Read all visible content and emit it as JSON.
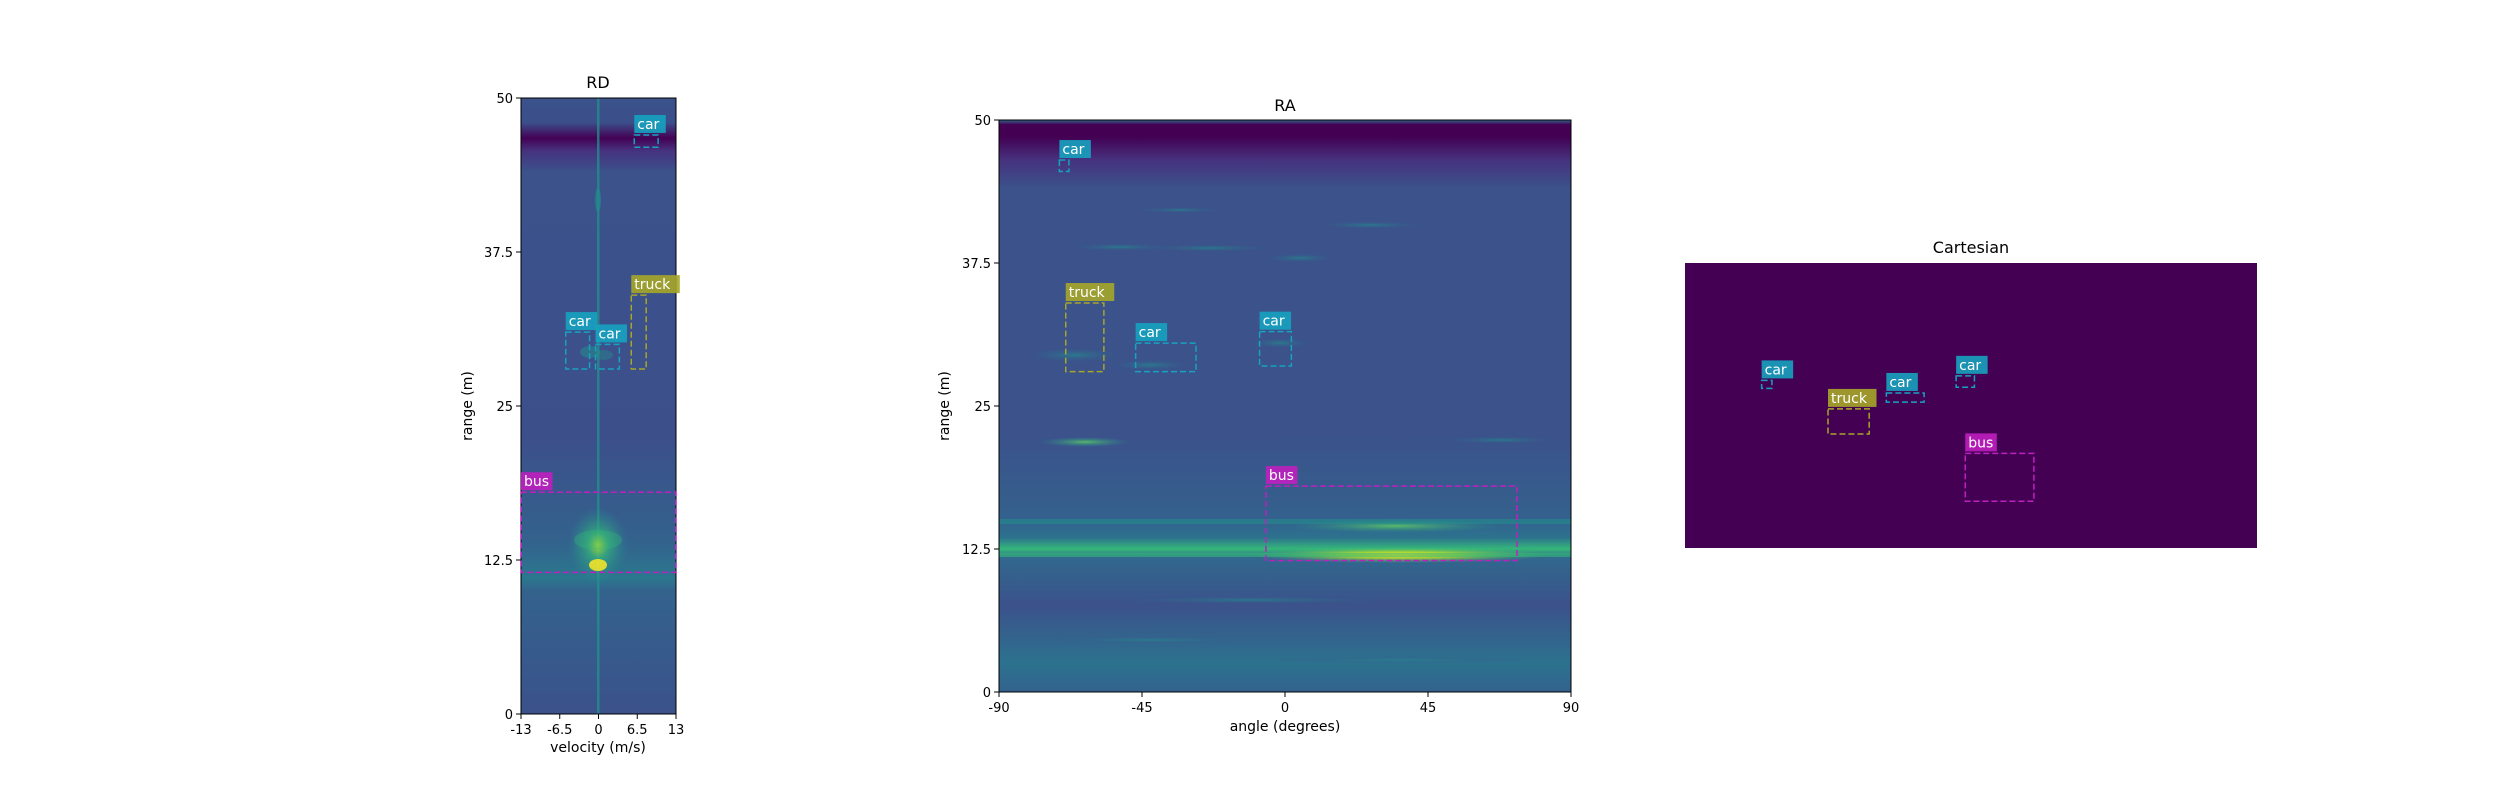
{
  "colors": {
    "car": "#17a2bf",
    "truck": "#a6a628",
    "bus": "#bf1fbf",
    "viridis_dark": "#440154",
    "viridis_mid": "#3b528b",
    "viridis_teal": "#21918c",
    "viridis_green": "#5ec962",
    "viridis_yellow": "#fde725"
  },
  "chart_data": [
    {
      "type": "heatmap",
      "title": "RD",
      "xlabel": "velocity (m/s)",
      "ylabel": "range (m)",
      "xlim": [
        -13,
        13
      ],
      "ylim": [
        0,
        50
      ],
      "xticks": [
        -13,
        -6.5,
        0,
        6.5,
        13
      ],
      "xtick_labels": [
        "-13",
        "-6.5",
        "0",
        "6.5",
        "13"
      ],
      "yticks": [
        0,
        12.5,
        25,
        37.5,
        50
      ],
      "ytick_labels": [
        "0",
        "12.5",
        "25",
        "37.5",
        "50"
      ],
      "grid": false,
      "boxes": [
        {
          "label": "car",
          "x0": 6,
          "x1": 10,
          "y0": 46,
          "y1": 47
        },
        {
          "label": "truck",
          "x0": 5.5,
          "x1": 8,
          "y0": 28,
          "y1": 34
        },
        {
          "label": "car",
          "x0": -5.5,
          "x1": -1.5,
          "y0": 28,
          "y1": 31
        },
        {
          "label": "car",
          "x0": -0.5,
          "x1": 3.5,
          "y0": 28,
          "y1": 30
        },
        {
          "label": "bus",
          "x0": -13,
          "x1": 13,
          "y0": 11.5,
          "y1": 18
        }
      ]
    },
    {
      "type": "heatmap",
      "title": "RA",
      "xlabel": "angle (degrees)",
      "ylabel": "range (m)",
      "xlim": [
        -90,
        90
      ],
      "ylim": [
        0,
        50
      ],
      "xticks": [
        -90,
        -45,
        0,
        45,
        90
      ],
      "xtick_labels": [
        "-90",
        "-45",
        "0",
        "45",
        "90"
      ],
      "yticks": [
        0,
        12.5,
        25,
        37.5,
        50
      ],
      "ytick_labels": [
        "0",
        "12.5",
        "25",
        "37.5",
        "50"
      ],
      "grid": false,
      "boxes": [
        {
          "label": "car",
          "x0": -71,
          "x1": -68,
          "y0": 45.5,
          "y1": 46.5
        },
        {
          "label": "truck",
          "x0": -69,
          "x1": -57,
          "y0": 28,
          "y1": 34
        },
        {
          "label": "car",
          "x0": -47,
          "x1": -28,
          "y0": 28,
          "y1": 30.5
        },
        {
          "label": "car",
          "x0": -8,
          "x1": 2,
          "y0": 28.5,
          "y1": 31.5
        },
        {
          "label": "bus",
          "x0": -6,
          "x1": 73,
          "y0": 11.5,
          "y1": 18
        }
      ]
    },
    {
      "type": "heatmap",
      "title": "Cartesian",
      "xlabel": "",
      "ylabel": "",
      "xlim": [
        -25,
        25
      ],
      "ylim": [
        0,
        25
      ],
      "axes_visible": false,
      "grid": false,
      "boxes": [
        {
          "label": "car",
          "x0": -18.3,
          "x1": -17.4,
          "y0": 14,
          "y1": 14.7
        },
        {
          "label": "truck",
          "x0": -12.5,
          "x1": -8.9,
          "y0": 10,
          "y1": 12.2
        },
        {
          "label": "car",
          "x0": -7.4,
          "x1": -4.1,
          "y0": 12.8,
          "y1": 13.6
        },
        {
          "label": "car",
          "x0": -1.3,
          "x1": 0.3,
          "y0": 14.1,
          "y1": 15.1
        },
        {
          "label": "bus",
          "x0": -0.5,
          "x1": 5.5,
          "y0": 4.1,
          "y1": 8.3
        }
      ]
    }
  ]
}
